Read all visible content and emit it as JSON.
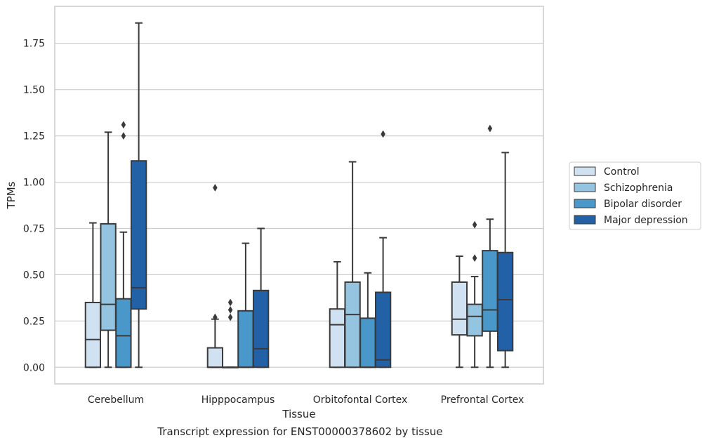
{
  "chart_data": {
    "type": "box",
    "title": "",
    "caption": "Transcript expression for ENST00000378602 by tissue",
    "xlabel": "Tissue",
    "ylabel": "TPMs",
    "ylim": [
      -0.09,
      1.95
    ],
    "yticks": [
      0.0,
      0.25,
      0.5,
      0.75,
      1.0,
      1.25,
      1.5,
      1.75
    ],
    "ytick_labels": [
      "0.00",
      "0.25",
      "0.50",
      "0.75",
      "1.00",
      "1.25",
      "1.50",
      "1.75"
    ],
    "grid": "horizontal",
    "legend_position": "right",
    "categories": [
      "Cerebellum",
      "Hipppocampus",
      "Orbitofontal Cortex",
      "Prefrontal Cortex"
    ],
    "series": [
      {
        "name": "Control",
        "color": "#d0e1f2",
        "boxes": [
          {
            "whislo": 0.0,
            "q1": 0.0,
            "med": 0.15,
            "q3": 0.35,
            "whishi": 0.78,
            "fliers": []
          },
          {
            "whislo": 0.0,
            "q1": 0.0,
            "med": 0.0,
            "q3": 0.105,
            "whishi": 0.26,
            "fliers": [
              0.27,
              0.97
            ]
          },
          {
            "whislo": 0.0,
            "q1": 0.0,
            "med": 0.23,
            "q3": 0.315,
            "whishi": 0.57,
            "fliers": []
          },
          {
            "whislo": 0.0,
            "q1": 0.175,
            "med": 0.26,
            "q3": 0.46,
            "whishi": 0.6,
            "fliers": []
          }
        ]
      },
      {
        "name": "Schizophrenia",
        "color": "#94c4df",
        "boxes": [
          {
            "whislo": 0.0,
            "q1": 0.2,
            "med": 0.34,
            "q3": 0.775,
            "whishi": 1.27,
            "fliers": []
          },
          {
            "whislo": 0.0,
            "q1": 0.0,
            "med": 0.0,
            "q3": 0.0,
            "whishi": 0.0,
            "fliers": [
              0.27,
              0.31,
              0.35
            ]
          },
          {
            "whislo": 0.0,
            "q1": 0.0,
            "med": 0.285,
            "q3": 0.46,
            "whishi": 1.11,
            "fliers": []
          },
          {
            "whislo": 0.0,
            "q1": 0.17,
            "med": 0.275,
            "q3": 0.34,
            "whishi": 0.49,
            "fliers": [
              0.59,
              0.77
            ]
          }
        ]
      },
      {
        "name": "Bipolar disorder",
        "color": "#4a98c9",
        "boxes": [
          {
            "whislo": 0.0,
            "q1": 0.0,
            "med": 0.17,
            "q3": 0.37,
            "whishi": 0.73,
            "fliers": [
              1.25,
              1.31
            ]
          },
          {
            "whislo": 0.0,
            "q1": 0.0,
            "med": 0.0,
            "q3": 0.305,
            "whishi": 0.67,
            "fliers": []
          },
          {
            "whislo": 0.0,
            "q1": 0.0,
            "med": 0.0,
            "q3": 0.265,
            "whishi": 0.51,
            "fliers": []
          },
          {
            "whislo": 0.0,
            "q1": 0.195,
            "med": 0.31,
            "q3": 0.63,
            "whishi": 0.8,
            "fliers": [
              1.29
            ]
          }
        ]
      },
      {
        "name": "Major depression",
        "color": "#2361a6",
        "boxes": [
          {
            "whislo": 0.0,
            "q1": 0.315,
            "med": 0.43,
            "q3": 1.115,
            "whishi": 1.86,
            "fliers": []
          },
          {
            "whislo": 0.0,
            "q1": 0.0,
            "med": 0.1,
            "q3": 0.415,
            "whishi": 0.75,
            "fliers": []
          },
          {
            "whislo": 0.0,
            "q1": 0.0,
            "med": 0.04,
            "q3": 0.405,
            "whishi": 0.7,
            "fliers": [
              1.26
            ]
          },
          {
            "whislo": 0.0,
            "q1": 0.09,
            "med": 0.365,
            "q3": 0.62,
            "whishi": 1.16,
            "fliers": []
          }
        ]
      }
    ]
  }
}
